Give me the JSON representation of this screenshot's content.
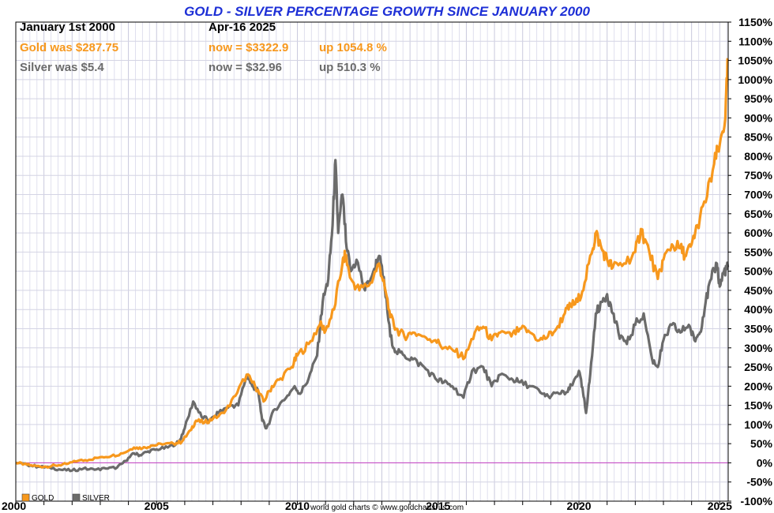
{
  "chart_data": {
    "type": "line",
    "title": "GOLD - SILVER PERCENTAGE GROWTH SINCE JANUARY 2000",
    "info": {
      "start_label": "January 1st 2000",
      "date_label": "Apr-16  2025",
      "gold_was": "Gold was $287.75",
      "gold_now": "now = $3322.9",
      "gold_up": "up 1054.8 %",
      "silver_was": "Silver was $5.4",
      "silver_now": "now = $32.96",
      "silver_up": "up 510.3 %"
    },
    "xlim": [
      2000,
      2025.3
    ],
    "ylim": [
      -100,
      1150
    ],
    "x_ticks": [
      2000,
      2005,
      2010,
      2015,
      2020,
      2025
    ],
    "x_tick_labels": [
      "2000",
      "2005",
      "2010",
      "2015",
      "2020",
      "2025"
    ],
    "y_ticks": [
      -100,
      -50,
      0,
      50,
      100,
      150,
      200,
      250,
      300,
      350,
      400,
      450,
      500,
      550,
      600,
      650,
      700,
      750,
      800,
      850,
      900,
      950,
      1000,
      1050,
      1100,
      1150
    ],
    "y_tick_labels": [
      "-100%",
      "-50%",
      "0%",
      "50%",
      "100%",
      "150%",
      "200%",
      "250%",
      "300%",
      "350%",
      "400%",
      "450%",
      "500%",
      "550%",
      "600%",
      "650%",
      "700%",
      "750%",
      "800%",
      "850%",
      "900%",
      "950%",
      "1000%",
      "1050%",
      "1100%",
      "1150%"
    ],
    "legend": [
      {
        "name": "GOLD",
        "color": "#f7981d"
      },
      {
        "name": "SILVER",
        "color": "#6b6b6b"
      }
    ],
    "legend_position": "bottom-left",
    "zero_line_color": "#c64fc6",
    "grid": true,
    "source": "world gold charts © www.goldchartsrus.com",
    "title_color": "#1d2fd6",
    "series": [
      {
        "name": "Gold",
        "color": "#f7981d",
        "x": [
          2000.0,
          2000.3,
          2000.6,
          2001.0,
          2001.4,
          2001.8,
          2002.2,
          2002.6,
          2003.0,
          2003.4,
          2003.8,
          2004.2,
          2004.5,
          2004.8,
          2005.2,
          2005.6,
          2005.9,
          2006.2,
          2006.4,
          2006.7,
          2007.0,
          2007.4,
          2007.8,
          2008.2,
          2008.5,
          2008.8,
          2009.1,
          2009.4,
          2009.8,
          2010.0,
          2010.4,
          2010.8,
          2011.0,
          2011.3,
          2011.6,
          2011.7,
          2011.9,
          2012.2,
          2012.6,
          2012.9,
          2013.1,
          2013.3,
          2013.5,
          2013.8,
          2014.1,
          2014.5,
          2014.9,
          2015.2,
          2015.6,
          2015.95,
          2016.3,
          2016.6,
          2016.9,
          2017.2,
          2017.6,
          2017.9,
          2018.2,
          2018.6,
          2018.9,
          2019.2,
          2019.5,
          2019.7,
          2019.95,
          2020.2,
          2020.5,
          2020.6,
          2020.8,
          2021.0,
          2021.2,
          2021.6,
          2022.0,
          2022.2,
          2022.5,
          2022.8,
          2023.0,
          2023.3,
          2023.6,
          2023.8,
          2024.0,
          2024.2,
          2024.5,
          2024.8,
          2025.0,
          2025.2,
          2025.29
        ],
        "values": [
          0,
          -3,
          -8,
          -10,
          -7,
          -3,
          5,
          8,
          15,
          18,
          25,
          40,
          38,
          45,
          48,
          50,
          55,
          85,
          110,
          105,
          115,
          130,
          175,
          230,
          200,
          160,
          200,
          220,
          250,
          280,
          310,
          360,
          345,
          400,
          520,
          540,
          480,
          450,
          470,
          520,
          460,
          380,
          350,
          330,
          340,
          330,
          320,
          300,
          290,
          275,
          340,
          355,
          320,
          340,
          330,
          350,
          345,
          320,
          330,
          350,
          390,
          410,
          420,
          470,
          560,
          600,
          560,
          530,
          510,
          520,
          550,
          610,
          550,
          480,
          530,
          570,
          560,
          540,
          570,
          620,
          680,
          780,
          830,
          900,
          1054.8
        ]
      },
      {
        "name": "Silver",
        "color": "#6b6b6b",
        "x": [
          2000.0,
          2000.4,
          2000.8,
          2001.2,
          2001.6,
          2002.0,
          2002.4,
          2002.8,
          2003.2,
          2003.6,
          2003.9,
          2004.2,
          2004.4,
          2004.7,
          2005.0,
          2005.4,
          2005.8,
          2006.0,
          2006.3,
          2006.6,
          2006.9,
          2007.2,
          2007.6,
          2007.9,
          2008.2,
          2008.4,
          2008.6,
          2008.75,
          2008.9,
          2009.2,
          2009.6,
          2009.9,
          2010.1,
          2010.4,
          2010.7,
          2010.9,
          2011.1,
          2011.25,
          2011.35,
          2011.45,
          2011.6,
          2011.75,
          2011.9,
          2012.1,
          2012.4,
          2012.7,
          2012.9,
          2013.1,
          2013.3,
          2013.5,
          2013.8,
          2014.1,
          2014.5,
          2014.9,
          2015.2,
          2015.5,
          2015.9,
          2016.2,
          2016.6,
          2016.9,
          2017.2,
          2017.6,
          2017.9,
          2018.3,
          2018.7,
          2018.9,
          2019.3,
          2019.6,
          2019.8,
          2020.0,
          2020.15,
          2020.25,
          2020.4,
          2020.6,
          2020.8,
          2021.0,
          2021.2,
          2021.4,
          2021.7,
          2022.0,
          2022.3,
          2022.6,
          2022.8,
          2023.0,
          2023.3,
          2023.6,
          2023.9,
          2024.1,
          2024.3,
          2024.5,
          2024.7,
          2024.9,
          2025.0,
          2025.15,
          2025.29
        ],
        "values": [
          0,
          -5,
          -10,
          -12,
          -18,
          -20,
          -15,
          -18,
          -15,
          -12,
          5,
          25,
          20,
          30,
          35,
          40,
          55,
          90,
          160,
          120,
          110,
          130,
          150,
          150,
          230,
          200,
          190,
          110,
          90,
          140,
          170,
          200,
          180,
          220,
          280,
          420,
          480,
          620,
          790,
          600,
          700,
          560,
          500,
          530,
          450,
          500,
          540,
          460,
          330,
          290,
          280,
          270,
          250,
          220,
          210,
          200,
          170,
          240,
          250,
          200,
          230,
          220,
          210,
          200,
          180,
          175,
          180,
          185,
          210,
          240,
          180,
          130,
          230,
          390,
          420,
          440,
          390,
          340,
          310,
          360,
          390,
          270,
          250,
          320,
          360,
          340,
          360,
          320,
          340,
          420,
          480,
          520,
          460,
          500,
          510.3
        ]
      }
    ]
  }
}
